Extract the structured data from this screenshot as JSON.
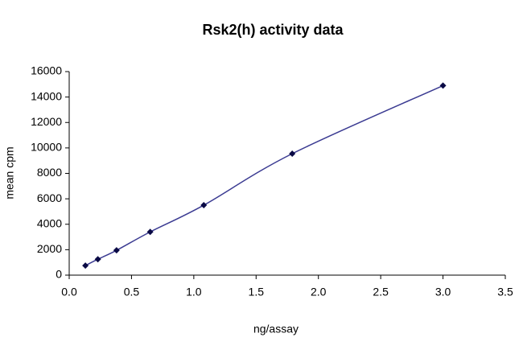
{
  "chart_data": {
    "type": "line",
    "title": "Rsk2(h) activity data",
    "x_label": "ng/assay",
    "y_label": "mean cpm",
    "x": [
      0.13,
      0.23,
      0.38,
      0.65,
      1.08,
      1.79,
      3.0
    ],
    "values": [
      750,
      1250,
      1950,
      3400,
      5500,
      9550,
      14900
    ],
    "color": "#3b3b92",
    "marker_color": "#0a0a45",
    "xlim": [
      0,
      3.5
    ],
    "xticks": [
      {
        "value": 0,
        "label": "0.0"
      },
      {
        "value": 0.5,
        "label": "0.5"
      },
      {
        "value": 1,
        "label": "1.0"
      },
      {
        "value": 1.5,
        "label": "1.5"
      },
      {
        "value": 2,
        "label": "2.0"
      },
      {
        "value": 2.5,
        "label": "2.5"
      },
      {
        "value": 3,
        "label": "3.0"
      },
      {
        "value": 3.5,
        "label": "3.5"
      }
    ],
    "ylim": [
      0,
      16000
    ],
    "yticks": [
      0,
      2000,
      4000,
      6000,
      8000,
      10000,
      12000,
      14000,
      16000
    ],
    "grid": false
  }
}
